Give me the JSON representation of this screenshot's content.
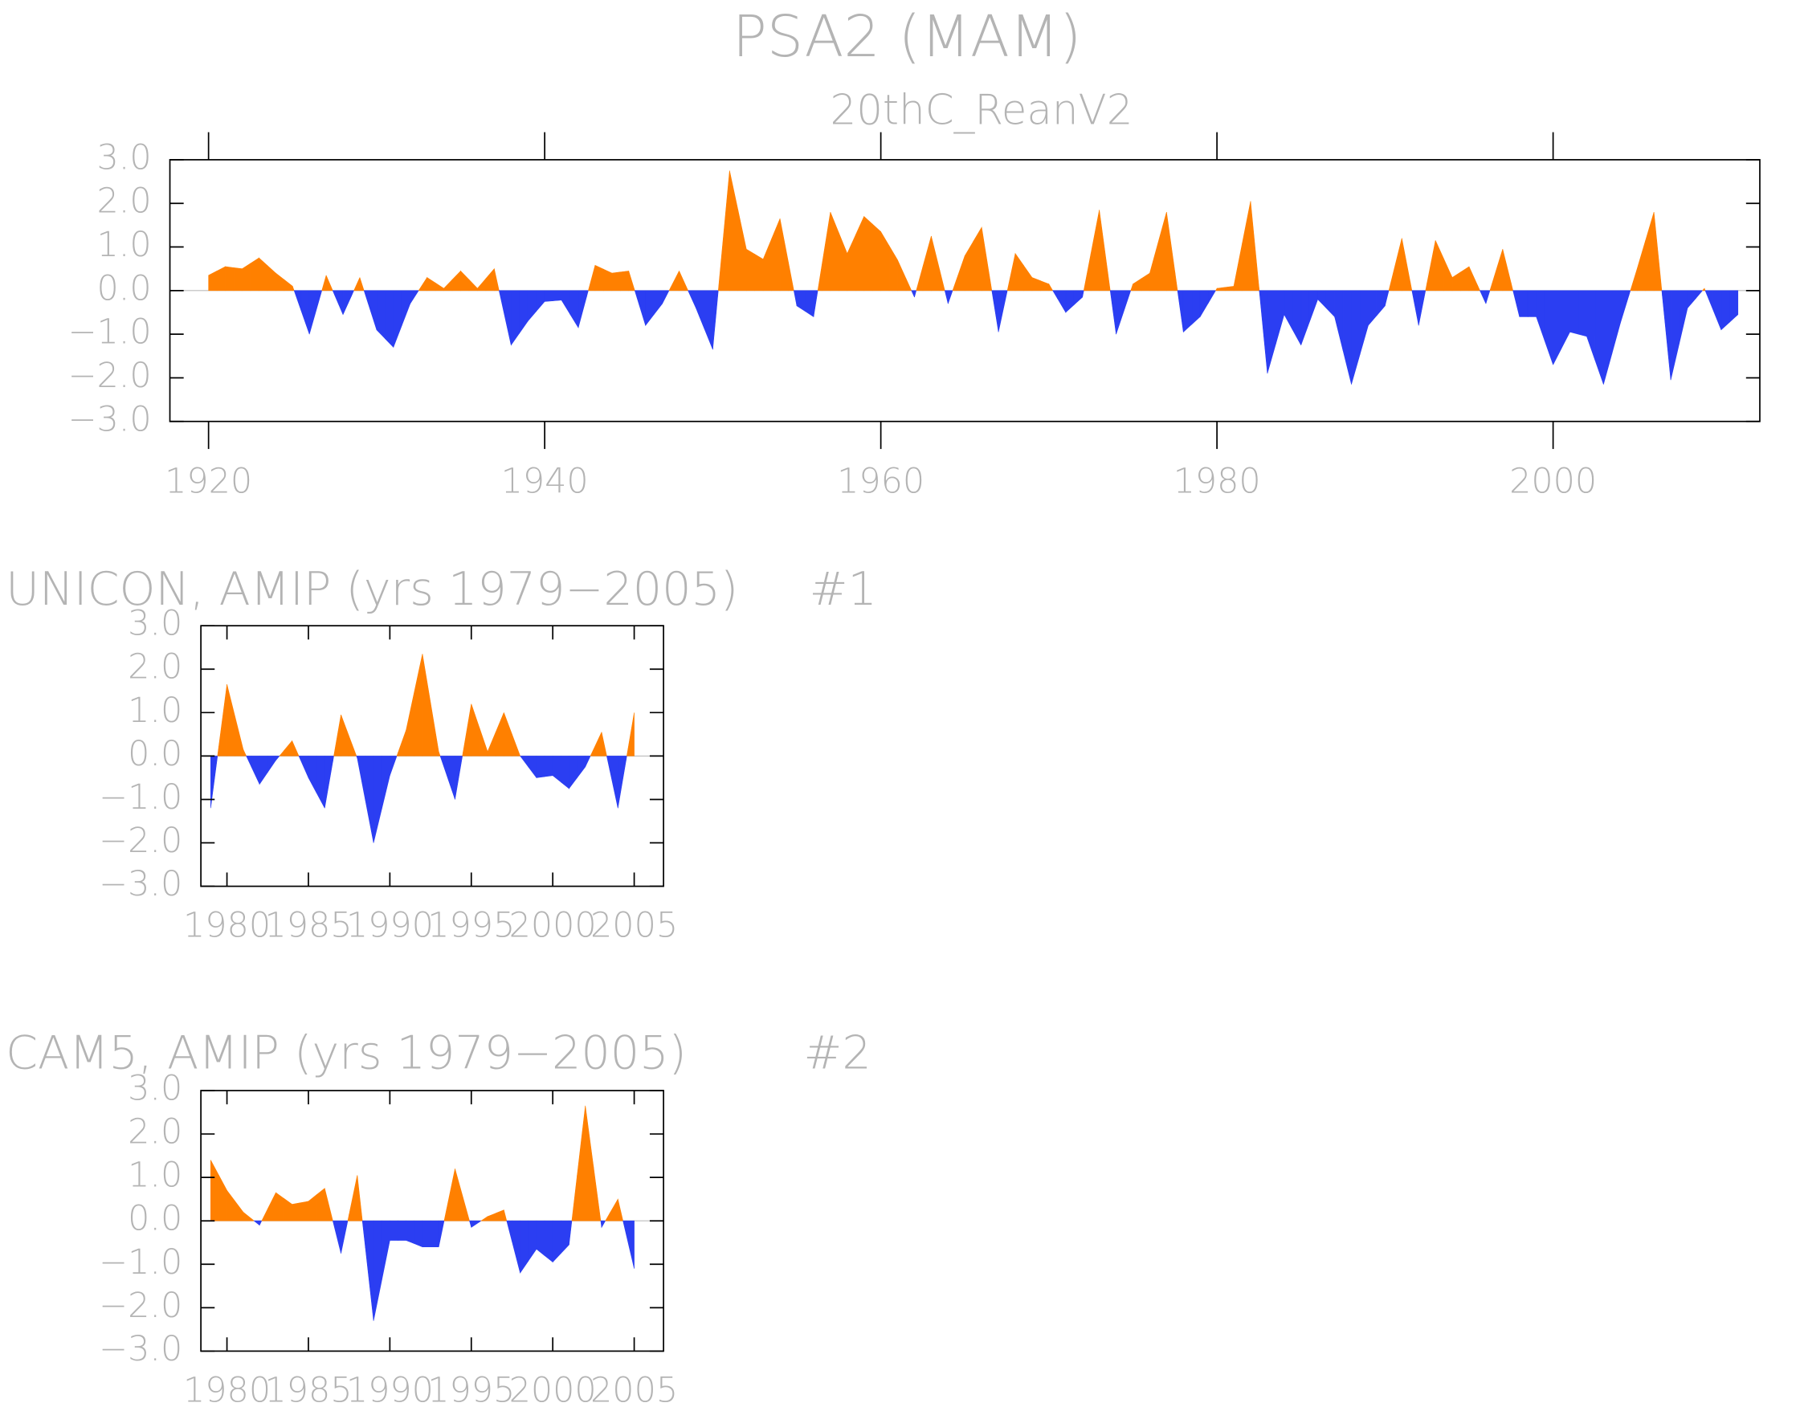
{
  "chart_data": [
    {
      "type": "area",
      "title": "PSA2 (MAM)",
      "subtitle": "20thC_ReanV2",
      "x": [
        1920,
        1921,
        1922,
        1923,
        1924,
        1925,
        1926,
        1927,
        1928,
        1929,
        1930,
        1931,
        1932,
        1933,
        1934,
        1935,
        1936,
        1937,
        1938,
        1939,
        1940,
        1941,
        1942,
        1943,
        1944,
        1945,
        1946,
        1947,
        1948,
        1949,
        1950,
        1951,
        1952,
        1953,
        1954,
        1955,
        1956,
        1957,
        1958,
        1959,
        1960,
        1961,
        1962,
        1963,
        1964,
        1965,
        1966,
        1967,
        1968,
        1969,
        1970,
        1971,
        1972,
        1973,
        1974,
        1975,
        1976,
        1977,
        1978,
        1979,
        1980,
        1981,
        1982,
        1983,
        1984,
        1985,
        1986,
        1987,
        1988,
        1989,
        1990,
        1991,
        1992,
        1993,
        1994,
        1995,
        1996,
        1997,
        1998,
        1999,
        2000,
        2001,
        2002,
        2003,
        2004,
        2005,
        2006,
        2007,
        2008,
        2009,
        2010,
        2011
      ],
      "values": [
        0.35,
        0.55,
        0.5,
        0.75,
        0.4,
        0.1,
        -1.0,
        0.35,
        -0.55,
        0.3,
        -0.9,
        -1.3,
        -0.3,
        0.3,
        0.05,
        0.45,
        0.05,
        0.5,
        -1.25,
        -0.7,
        -0.25,
        -0.22,
        -0.85,
        0.58,
        0.4,
        0.45,
        -0.8,
        -0.3,
        0.45,
        -0.4,
        -1.35,
        2.75,
        0.95,
        0.72,
        1.65,
        -0.35,
        -0.6,
        1.8,
        0.85,
        1.7,
        1.35,
        0.7,
        -0.15,
        1.25,
        -0.3,
        0.8,
        1.45,
        -0.95,
        0.85,
        0.3,
        0.15,
        -0.5,
        -0.15,
        1.85,
        -1.0,
        0.15,
        0.4,
        1.8,
        -0.95,
        -0.6,
        0.05,
        0.1,
        2.05,
        -1.9,
        -0.55,
        -1.25,
        -0.2,
        -0.6,
        -2.15,
        -0.8,
        -0.35,
        1.2,
        -0.8,
        1.15,
        0.3,
        0.55,
        -0.3,
        0.95,
        -0.6,
        -0.6,
        -1.7,
        -0.95,
        -1.05,
        -2.15,
        -0.75,
        0.5,
        1.8,
        -2.05,
        -0.4,
        0.05,
        -0.9,
        -0.55
      ],
      "positive_color": "#ff8000",
      "negative_color": "#2b3ef2",
      "xlim": [
        1917.7,
        2012.3
      ],
      "ylim": [
        -3,
        3
      ],
      "xticks": [
        1920,
        1940,
        1960,
        1980,
        2000
      ],
      "yticks": [
        {
          "value": 3,
          "label": "3.0"
        },
        {
          "value": 2,
          "label": "2.0"
        },
        {
          "value": 1,
          "label": "1.0"
        },
        {
          "value": 0,
          "label": "0.0"
        },
        {
          "value": -1,
          "label": "−1.0"
        },
        {
          "value": -2,
          "label": "−2.0"
        },
        {
          "value": -3,
          "label": "−3.0"
        }
      ]
    },
    {
      "type": "area",
      "title": "UNICON, AMIP (yrs 1979−2005)",
      "annotation": "#1",
      "x": [
        1979,
        1980,
        1981,
        1982,
        1983,
        1984,
        1985,
        1986,
        1987,
        1988,
        1989,
        1990,
        1991,
        1992,
        1993,
        1994,
        1995,
        1996,
        1997,
        1998,
        1999,
        2000,
        2001,
        2002,
        2003,
        2004,
        2005
      ],
      "values": [
        -1.2,
        1.65,
        0.15,
        -0.65,
        -0.1,
        0.35,
        -0.5,
        -1.2,
        0.95,
        -0.05,
        -2.0,
        -0.45,
        0.6,
        2.35,
        0.1,
        -1.0,
        1.2,
        0.1,
        1.0,
        0.0,
        -0.5,
        -0.45,
        -0.75,
        -0.25,
        0.55,
        -1.2,
        1.0
      ],
      "positive_color": "#ff8000",
      "negative_color": "#2b3ef2",
      "xlim": [
        1978.4,
        2006.8
      ],
      "ylim": [
        -3,
        3
      ],
      "xticks": [
        1980,
        1985,
        1990,
        1995,
        2000,
        2005
      ],
      "yticks": [
        {
          "value": 3,
          "label": "3.0"
        },
        {
          "value": 2,
          "label": "2.0"
        },
        {
          "value": 1,
          "label": "1.0"
        },
        {
          "value": 0,
          "label": "0.0"
        },
        {
          "value": -1,
          "label": "−1.0"
        },
        {
          "value": -2,
          "label": "−2.0"
        },
        {
          "value": -3,
          "label": "−3.0"
        }
      ]
    },
    {
      "type": "area",
      "title": "CAM5, AMIP (yrs 1979−2005)",
      "annotation": "#2",
      "x": [
        1979,
        1980,
        1981,
        1982,
        1983,
        1984,
        1985,
        1986,
        1987,
        1988,
        1989,
        1990,
        1991,
        1992,
        1993,
        1994,
        1995,
        1996,
        1997,
        1998,
        1999,
        2000,
        2001,
        2002,
        2003,
        2004,
        2005
      ],
      "values": [
        1.4,
        0.7,
        0.2,
        -0.1,
        0.65,
        0.38,
        0.45,
        0.75,
        -0.75,
        1.05,
        -2.3,
        -0.45,
        -0.45,
        -0.6,
        -0.6,
        1.2,
        -0.15,
        0.1,
        0.25,
        -1.2,
        -0.65,
        -0.95,
        -0.55,
        2.65,
        -0.15,
        0.5,
        -1.1
      ],
      "positive_color": "#ff8000",
      "negative_color": "#2b3ef2",
      "xlim": [
        1978.4,
        2006.8
      ],
      "ylim": [
        -3,
        3
      ],
      "xticks": [
        1980,
        1985,
        1990,
        1995,
        2000,
        2005
      ],
      "yticks": [
        {
          "value": 3,
          "label": "3.0"
        },
        {
          "value": 2,
          "label": "2.0"
        },
        {
          "value": 1,
          "label": "1.0"
        },
        {
          "value": 0,
          "label": "0.0"
        },
        {
          "value": -1,
          "label": "−1.0"
        },
        {
          "value": -2,
          "label": "−2.0"
        },
        {
          "value": -3,
          "label": "−3.0"
        }
      ]
    }
  ]
}
